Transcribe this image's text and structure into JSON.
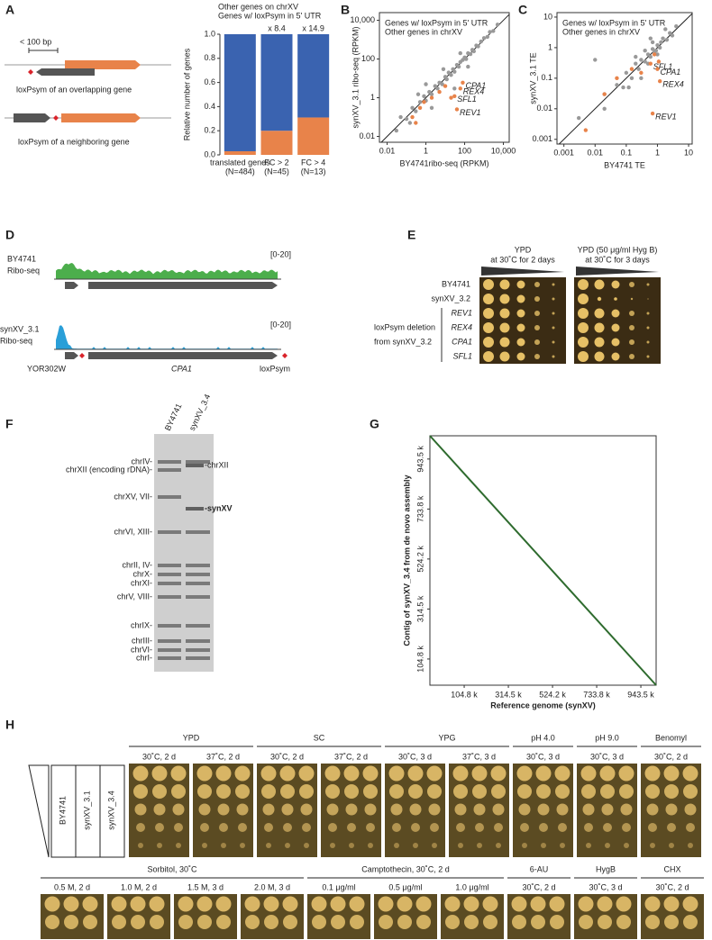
{
  "figure": {
    "panel_labels": [
      "A",
      "B",
      "C",
      "D",
      "E",
      "F",
      "G",
      "H"
    ],
    "A": {
      "scale": "< 100 bp",
      "overlapping": "loxPsym of an overlapping gene",
      "neighboring": "loxPsym of a neighboring gene"
    },
    "D": {
      "tracks": [
        {
          "strain": "BY4741",
          "assay": "Ribo-seq",
          "range": "[0-20]"
        },
        {
          "strain": "synXV_3.1",
          "assay": "Ribo-seq",
          "range": "[0-20]"
        }
      ],
      "genes": [
        "YOR302W",
        "CPA1"
      ],
      "site": "loxPsym"
    },
    "E": {
      "conditions": [
        [
          "YPD",
          "at 30˚C for 2 days"
        ],
        [
          "YPD (50 μg/ml Hyg B)",
          "at 30˚C for 3 days"
        ]
      ],
      "strains": [
        "BY4741",
        "synXV_3.2"
      ],
      "deletions": [
        "REV1",
        "REX4",
        "CPA1",
        "SFL1"
      ],
      "deletion_label": [
        "loxPsym deletion",
        "from synXV_3.2"
      ]
    },
    "F": {
      "lanes": [
        "BY4741",
        "synXV_3.4"
      ],
      "left_bands": [
        "chrIV-",
        "chrXII (encoding rDNA)-",
        "chrXV, VII-",
        "chrVI, XIII-",
        "chrII, IV-",
        "chrX-",
        "chrXI-",
        "chrV, VIII-",
        "chrIX-",
        "chrIII-",
        "chrVI-",
        "chrI-"
      ],
      "right_bands": [
        "-chrXII",
        "-synXV"
      ]
    },
    "H": {
      "strains": [
        "BY4741",
        "synXV_3.1",
        "synXV_3.4"
      ],
      "rows": [
        [
          {
            "title": "YPD",
            "plates": [
              "30˚C, 2 d",
              "37˚C, 2 d"
            ]
          },
          {
            "title": "SC",
            "plates": [
              "30˚C, 2 d",
              "37˚C, 2 d"
            ]
          },
          {
            "title": "YPG",
            "plates": [
              "30˚C, 3 d",
              "37˚C, 3 d"
            ]
          },
          {
            "title": "pH 4.0",
            "plates": [
              "30˚C, 3 d"
            ]
          },
          {
            "title": "pH 9.0",
            "plates": [
              "30˚C, 3 d"
            ]
          },
          {
            "title": "Benomyl",
            "plates": [
              "30˚C, 2 d"
            ]
          }
        ],
        [
          {
            "title": "Sorbitol, 30˚C",
            "plates": [
              "0.5 M, 2 d",
              "1.0 M, 2 d",
              "1.5 M, 3 d",
              "2.0 M, 3 d"
            ]
          },
          {
            "title": "Camptothecin, 30˚C, 2 d",
            "plates": [
              "0.1 μg/ml",
              "0.5 μg/ml",
              "1.0 μg/ml"
            ]
          },
          {
            "title": "6-AU",
            "plates": [
              "30˚C, 2 d"
            ]
          },
          {
            "title": "HygB",
            "plates": [
              "30˚C, 3 d"
            ]
          },
          {
            "title": "CHX",
            "plates": [
              "30˚C, 2 d"
            ]
          }
        ]
      ]
    }
  },
  "chart_data": [
    {
      "type": "bar",
      "stacked": true,
      "ylabel": "Relative number of genes",
      "categories": [
        "translated genes",
        "FC > 2",
        "FC > 4"
      ],
      "category_counts": [
        "(N=484)",
        "(N=45)",
        "(N=13)"
      ],
      "annotations": [
        null,
        "x 8.4",
        "x 14.9"
      ],
      "series": [
        {
          "name": "Genes w/ loxPsym in 5' UTR",
          "color": "#e8834a",
          "values": [
            0.03,
            0.2,
            0.31
          ]
        },
        {
          "name": "Other genes on chrXV",
          "color": "#3a63b0",
          "values": [
            0.97,
            0.8,
            0.69
          ]
        }
      ],
      "ylim": [
        0,
        1
      ],
      "yticks": [
        {
          "value": 0,
          "label": "0.0"
        },
        0.2,
        0.4,
        0.6,
        0.8,
        {
          "value": 1,
          "label": "1.0"
        }
      ]
    },
    {
      "type": "scatter",
      "xlabel": "BY4741ribo-seq (RPKM)",
      "ylabel": "synXV_3.1 ribo-seq (RPKM)",
      "log": true,
      "diagonal": true,
      "xlim": [
        0.004,
        20000
      ],
      "ylim": [
        0.005,
        25000
      ],
      "xticks": [
        0.01,
        1,
        100,
        {
          "value": 10000,
          "label": "10,000"
        }
      ],
      "yticks": [
        0.01,
        1,
        100,
        {
          "value": 10000,
          "label": "10,000"
        }
      ],
      "series": [
        {
          "name": "Genes w/ loxPsym in 5' UTR",
          "color": "#e8834a",
          "x": [
            0.2,
            0.3,
            0.5,
            2,
            5,
            10,
            20,
            30,
            40,
            60,
            80,
            0.8
          ],
          "values": [
            0.1,
            0.05,
            0.3,
            1,
            2,
            4,
            1,
            1.2,
            0.25,
            3,
            6,
            0.6
          ],
          "point_labels": [
            null,
            null,
            null,
            null,
            null,
            null,
            null,
            "SFL1",
            "REV1",
            "REX4",
            "CPA1",
            null
          ]
        },
        {
          "name": "Other genes in chrXV",
          "color": "#999999",
          "x": [
            0.03,
            0.05,
            0.1,
            0.2,
            0.3,
            0.5,
            0.8,
            1,
            1.5,
            2,
            3,
            4,
            5,
            7,
            10,
            12,
            15,
            20,
            25,
            30,
            40,
            50,
            60,
            80,
            100,
            120,
            150,
            200,
            250,
            300,
            400,
            500,
            700,
            1000,
            1500,
            2000,
            3000,
            5000,
            0.4,
            2,
            8,
            30,
            60,
            150,
            0.15,
            1
          ],
          "values": [
            0.02,
            0.1,
            0.08,
            0.3,
            0.2,
            0.6,
            1.2,
            0.7,
            2,
            1.5,
            4,
            3,
            6,
            5,
            12,
            9,
            20,
            15,
            30,
            22,
            50,
            40,
            70,
            90,
            120,
            100,
            200,
            180,
            300,
            250,
            500,
            450,
            800,
            1200,
            1400,
            2500,
            2800,
            6000,
            1.5,
            0.3,
            30,
            3,
            200,
            40,
            0.05,
            5
          ]
        }
      ]
    },
    {
      "type": "scatter",
      "xlabel": "BY4741 TE",
      "ylabel": "synXV_3.1 TE",
      "log": true,
      "diagonal": true,
      "xlim": [
        0.0006,
        13
      ],
      "ylim": [
        0.0007,
        14
      ],
      "xticks": [
        0.001,
        0.01,
        0.1,
        1,
        10
      ],
      "yticks": [
        0.001,
        0.01,
        0.1,
        1,
        10
      ],
      "series": [
        {
          "name": "Genes w/ loxPsym in 5' UTR",
          "color": "#e8834a",
          "x": [
            0.005,
            0.02,
            0.05,
            0.15,
            0.3,
            0.6,
            0.8,
            1,
            1.2,
            1.1,
            0.7
          ],
          "values": [
            0.002,
            0.03,
            0.1,
            0.2,
            0.15,
            0.3,
            0.6,
            0.2,
            0.08,
            0.35,
            0.007
          ],
          "point_labels": [
            null,
            null,
            null,
            null,
            null,
            "SFL1",
            null,
            "CPA1",
            "REX4",
            null,
            "REV1"
          ]
        },
        {
          "name": "Other genes in chrXV",
          "color": "#999999",
          "x": [
            0.003,
            0.01,
            0.02,
            0.05,
            0.08,
            0.1,
            0.15,
            0.2,
            0.25,
            0.3,
            0.4,
            0.5,
            0.6,
            0.7,
            0.8,
            1,
            1.2,
            1.5,
            2,
            2.5,
            3,
            4,
            0.3,
            0.5,
            0.7,
            1,
            0.2,
            0.6,
            0.9,
            1.3,
            0.02,
            0.4,
            1.8,
            0.12
          ],
          "values": [
            0.005,
            0.4,
            0.03,
            0.06,
            0.05,
            0.15,
            0.1,
            0.3,
            0.2,
            0.4,
            0.35,
            0.6,
            0.5,
            0.9,
            0.7,
            1.2,
            1,
            2,
            1.8,
            3,
            2.5,
            5,
            0.1,
            0.3,
            1.5,
            0.6,
            0.5,
            2,
            0.8,
            1.5,
            0.01,
            0.8,
            4,
            0.05
          ]
        }
      ]
    },
    {
      "type": "line",
      "xlabel": "Reference genome (synXV)",
      "ylabel": "Contig of synXV_3.4 from de novo assembly",
      "x": [
        -58000,
        1016000
      ],
      "series": [
        {
          "color": "#2e6b2e",
          "values": [
            1041000,
            -5000
          ]
        }
      ],
      "xlim": [
        -58000,
        1016000
      ],
      "ylim": [
        -5000,
        1041000
      ],
      "xticks": [
        {
          "value": 104800,
          "label": "104.8 k"
        },
        {
          "value": 314500,
          "label": "314.5 k"
        },
        {
          "value": 524200,
          "label": "524.2 k"
        },
        {
          "value": 733800,
          "label": "733.8 k"
        },
        {
          "value": 943500,
          "label": "943.5 k"
        }
      ],
      "yticks": [
        {
          "value": 104800,
          "label": "104.8 k"
        },
        {
          "value": 314500,
          "label": "314.5 k"
        },
        {
          "value": 524200,
          "label": "524.2 k"
        },
        {
          "value": 733800,
          "label": "733.8 k"
        },
        {
          "value": 943500,
          "label": "943.5 k"
        }
      ]
    }
  ]
}
